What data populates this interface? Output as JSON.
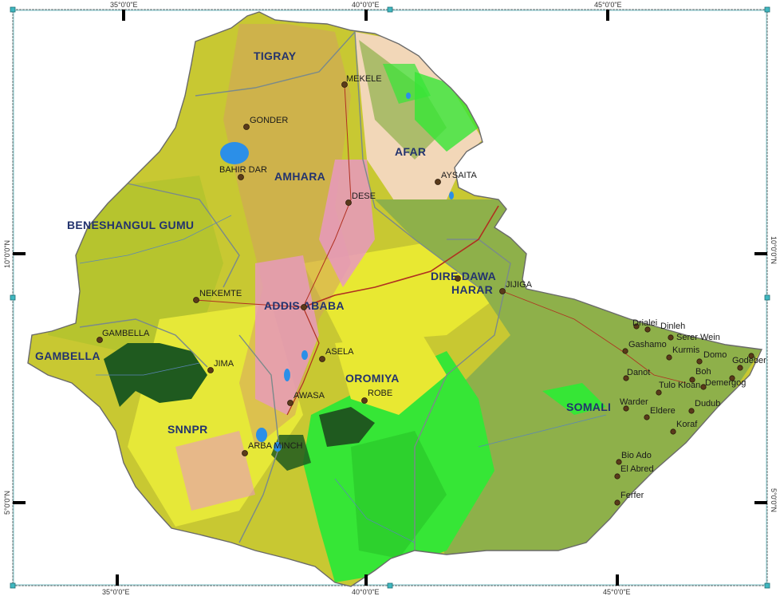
{
  "coordinates": {
    "top": [
      "35°0'0\"E",
      "40°0'0\"E",
      "45°0'0\"E"
    ],
    "bottom": [
      "35°0'0\"E",
      "40°0'0\"E",
      "45°0'0\"E"
    ],
    "left": [
      "10°0'0\"N",
      "5°0'0\"N"
    ],
    "right": [
      "10°0'0\"N",
      "5°0'0\"N"
    ]
  },
  "regions": {
    "tigray": "TIGRAY",
    "afar": "AFAR",
    "amhara": "AMHARA",
    "beneshangul": "BENESHANGUL GUMU",
    "diredawa": "DIRE DAWA",
    "harar": "HARAR",
    "addisababa": "ADDIS ABABA",
    "gambella": "GAMBELLA",
    "oromiya": "OROMIYA",
    "somali": "SOMALI",
    "snnpr": "SNNPR"
  },
  "cities": {
    "mekele": "MEKELE",
    "gonder": "GONDER",
    "bahirdar": "BAHIR DAR",
    "aysaita": "AYSAITA",
    "dese": "DESE",
    "jijiga": "JIJIGA",
    "nekemte": "NEKEMTE",
    "gambella": "GAMBELLA",
    "asela": "ASELA",
    "jima": "JIMA",
    "awasa": "AWASA",
    "robe": "ROBE",
    "arbaminch": "ARBA MINCH"
  },
  "towns": {
    "drialei": "Drialei",
    "dinleh": "Dinleh",
    "sererwein": "Serer Wein",
    "gashamo": "Gashamo",
    "kurmis": "Kurmis",
    "domo": "Domo",
    "godeber": "Godeber",
    "danot": "Danot",
    "boh": "Boh",
    "demergog": "Demergog",
    "tulokloan": "Tulo Kloan",
    "warder": "Warder",
    "eldere": "Eldere",
    "dudub": "Dudub",
    "koraf": "Koraf",
    "bioado": "Bio Ado",
    "elabred": "El Abred",
    "ferfer": "Ferfer"
  },
  "colors": {
    "cropland": "#c8c832",
    "highland": "#a8c43a",
    "forest": "#1f5a1f",
    "shrub": "#e8e832",
    "grassland": "#36e636",
    "bare": "#f2d7b8",
    "pink": "#e898c0",
    "lowland": "#8eb04a",
    "water": "#2b8fe8",
    "region_label": "#23336e"
  }
}
